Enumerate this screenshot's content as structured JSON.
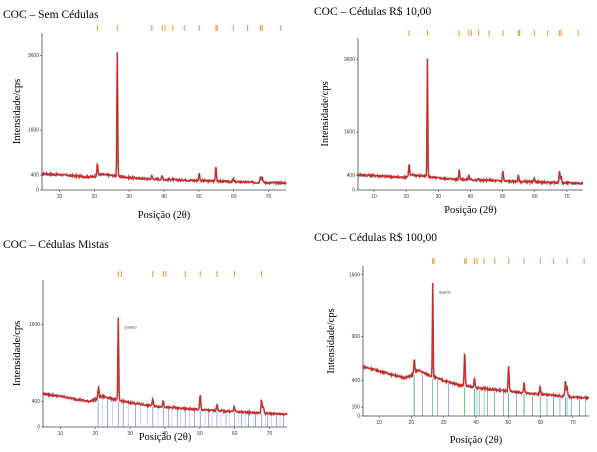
{
  "chart_data": [
    {
      "type": "line",
      "title": "COC – Sem Cédulas",
      "xlabel": "Posição (2θ)",
      "ylabel": "Intensidade/cps",
      "xlim": [
        5,
        75
      ],
      "ylim": [
        0,
        4200
      ],
      "xticks": [
        10,
        20,
        30,
        40,
        50,
        60,
        70
      ],
      "yticks": [
        0,
        400,
        1600,
        3600
      ],
      "grid": false,
      "background": [
        [
          5,
          430
        ],
        [
          10,
          410
        ],
        [
          15,
          375
        ],
        [
          18,
          350
        ],
        [
          20,
          360
        ],
        [
          22,
          420
        ],
        [
          25,
          390
        ],
        [
          30,
          330
        ],
        [
          35,
          300
        ],
        [
          40,
          280
        ],
        [
          45,
          265
        ],
        [
          50,
          250
        ],
        [
          55,
          235
        ],
        [
          60,
          220
        ],
        [
          65,
          205
        ],
        [
          70,
          195
        ],
        [
          75,
          185
        ]
      ],
      "peaks": [
        [
          20.9,
          680
        ],
        [
          26.6,
          3700
        ],
        [
          36.5,
          380
        ],
        [
          39.5,
          380
        ],
        [
          40.3,
          280
        ],
        [
          42.5,
          300
        ],
        [
          45.8,
          270
        ],
        [
          50.1,
          450
        ],
        [
          54.9,
          640
        ],
        [
          59.9,
          300
        ],
        [
          64.0,
          220
        ],
        [
          67.7,
          380
        ],
        [
          68.2,
          330
        ]
      ],
      "ref_marks": [
        20.9,
        26.6,
        36.5,
        39.5,
        40.3,
        42.5,
        45.8,
        50.1,
        54.9,
        55.3,
        59.9,
        64.0,
        67.7,
        68.2,
        73.5
      ],
      "stick_lines": [],
      "annotation": ""
    },
    {
      "type": "line",
      "title": "COC – Cédulas R$ 10,00",
      "xlabel": "Posição (2θ)",
      "ylabel": "Intensidade/cps",
      "xlim": [
        5,
        75
      ],
      "ylim": [
        0,
        4200
      ],
      "xticks": [
        10,
        20,
        30,
        40,
        50,
        60,
        70
      ],
      "yticks": [
        0,
        400,
        1600,
        3600
      ],
      "grid": false,
      "background": [
        [
          5,
          420
        ],
        [
          10,
          400
        ],
        [
          15,
          370
        ],
        [
          18,
          345
        ],
        [
          20,
          360
        ],
        [
          22,
          420
        ],
        [
          25,
          390
        ],
        [
          30,
          330
        ],
        [
          35,
          300
        ],
        [
          40,
          280
        ],
        [
          45,
          265
        ],
        [
          50,
          250
        ],
        [
          55,
          235
        ],
        [
          60,
          220
        ],
        [
          65,
          205
        ],
        [
          70,
          195
        ],
        [
          75,
          185
        ]
      ],
      "peaks": [
        [
          20.9,
          720
        ],
        [
          26.6,
          3650
        ],
        [
          36.5,
          560
        ],
        [
          39.5,
          420
        ],
        [
          40.3,
          290
        ],
        [
          42.5,
          310
        ],
        [
          45.8,
          280
        ],
        [
          50.1,
          530
        ],
        [
          54.9,
          400
        ],
        [
          59.9,
          330
        ],
        [
          64.0,
          230
        ],
        [
          67.7,
          520
        ],
        [
          68.2,
          360
        ]
      ],
      "ref_marks": [
        20.9,
        26.6,
        36.5,
        39.5,
        40.3,
        42.5,
        45.8,
        50.1,
        54.9,
        55.3,
        59.9,
        64.0,
        67.7,
        68.2,
        73.5
      ],
      "stick_lines": [],
      "annotation": ""
    },
    {
      "type": "line",
      "title": "COC – Cédulas Mistas",
      "xlabel": "Posição (2θ)",
      "ylabel": "Intensidade/cps",
      "xlim": [
        5,
        75
      ],
      "ylim": [
        0,
        2300
      ],
      "xticks": [
        10,
        20,
        30,
        40,
        50,
        60,
        70
      ],
      "yticks": [
        0,
        400,
        1600
      ],
      "grid": false,
      "background": [
        [
          5,
          520
        ],
        [
          10,
          480
        ],
        [
          15,
          430
        ],
        [
          18,
          400
        ],
        [
          20,
          430
        ],
        [
          22,
          480
        ],
        [
          25,
          440
        ],
        [
          30,
          380
        ],
        [
          35,
          340
        ],
        [
          40,
          310
        ],
        [
          45,
          290
        ],
        [
          50,
          270
        ],
        [
          55,
          255
        ],
        [
          60,
          240
        ],
        [
          65,
          225
        ],
        [
          70,
          210
        ],
        [
          75,
          200
        ]
      ],
      "peaks": [
        [
          20.9,
          620
        ],
        [
          26.6,
          1700
        ],
        [
          36.5,
          430
        ],
        [
          39.5,
          420
        ],
        [
          40.3,
          300
        ],
        [
          42.5,
          320
        ],
        [
          45.8,
          290
        ],
        [
          50.1,
          500
        ],
        [
          54.9,
          360
        ],
        [
          59.9,
          320
        ],
        [
          64.0,
          230
        ],
        [
          67.7,
          430
        ],
        [
          68.2,
          330
        ]
      ],
      "ref_marks": [
        26.6,
        27.5,
        36.5,
        39.5,
        40.3,
        45.8,
        50.1,
        54.9,
        59.9,
        67.7
      ],
      "stick_lines": [
        {
          "color": "#3d5bd9",
          "x": [
            20.8,
            23.5,
            26.6,
            28.0,
            31.5,
            36.5,
            39.5,
            41.0,
            43.5,
            45.8,
            48.5,
            50.1,
            52.5,
            54.9,
            57.5,
            59.9,
            62.0,
            64.0,
            66.0,
            67.7,
            69.5,
            72.0,
            74.0
          ]
        },
        {
          "color": "#9ab0e8",
          "x": [
            22.0,
            25.0,
            29.5,
            33.0,
            35.0,
            38.0,
            42.0,
            44.5,
            47.0,
            51.5,
            53.5,
            56.0,
            58.5,
            61.0,
            63.0,
            65.5,
            68.8,
            70.5,
            73.0
          ]
        }
      ],
      "annotation": "Quartzo"
    },
    {
      "type": "line",
      "title": "COC – Cédulas R$ 100,00",
      "xlabel": "Posição (2θ)",
      "ylabel": "Intensidade/cps",
      "xlim": [
        5,
        75
      ],
      "ylim": [
        0,
        1700
      ],
      "xticks": [
        10,
        20,
        30,
        40,
        50,
        60,
        70
      ],
      "yticks": [
        0,
        100,
        400,
        900,
        1600
      ],
      "grid": false,
      "background": [
        [
          5,
          560
        ],
        [
          10,
          510
        ],
        [
          15,
          460
        ],
        [
          18,
          430
        ],
        [
          20,
          460
        ],
        [
          22,
          520
        ],
        [
          25,
          470
        ],
        [
          30,
          400
        ],
        [
          35,
          350
        ],
        [
          40,
          320
        ],
        [
          45,
          300
        ],
        [
          50,
          280
        ],
        [
          55,
          260
        ],
        [
          60,
          245
        ],
        [
          65,
          230
        ],
        [
          70,
          215
        ],
        [
          75,
          205
        ]
      ],
      "peaks": [
        [
          20.9,
          640
        ],
        [
          26.6,
          1500
        ],
        [
          36.5,
          720
        ],
        [
          39.5,
          430
        ],
        [
          40.3,
          320
        ],
        [
          42.5,
          330
        ],
        [
          45.8,
          300
        ],
        [
          50.1,
          560
        ],
        [
          54.9,
          380
        ],
        [
          59.9,
          330
        ],
        [
          64.0,
          240
        ],
        [
          67.7,
          400
        ],
        [
          68.2,
          330
        ]
      ],
      "ref_marks": [
        26.6,
        27.0,
        36.5,
        37.0,
        39.5,
        40.3,
        42.5,
        45.8,
        50.1,
        54.9,
        59.9,
        64.0,
        68.2,
        73.5
      ],
      "stick_lines": [
        {
          "color": "#3d5bd9",
          "x": [
            20.8,
            23.5,
            26.6,
            28.0,
            31.5,
            36.5,
            39.5,
            41.0,
            43.5,
            45.8,
            48.5,
            50.1,
            52.5,
            54.9,
            57.5,
            59.9,
            62.0,
            64.0,
            66.0,
            67.7,
            69.5,
            72.0,
            74.0
          ]
        },
        {
          "color": "#39a845",
          "x": [
            20.9,
            26.6,
            36.5,
            39.5,
            40.3,
            42.5,
            45.8,
            50.1,
            54.9,
            59.9,
            64.0,
            67.7,
            68.2
          ]
        }
      ],
      "annotation": "Quartzo"
    }
  ],
  "colors": {
    "trace": "#d92020",
    "trace_dark": "#550000",
    "ref_marks": "#e8a13a",
    "axis": "#444444"
  }
}
